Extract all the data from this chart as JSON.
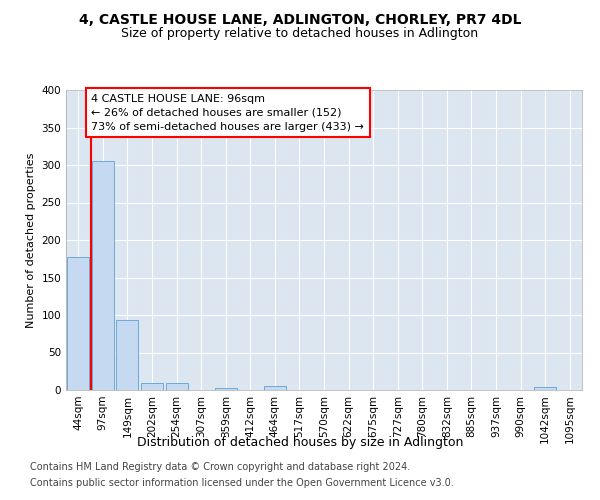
{
  "title1": "4, CASTLE HOUSE LANE, ADLINGTON, CHORLEY, PR7 4DL",
  "title2": "Size of property relative to detached houses in Adlington",
  "xlabel": "Distribution of detached houses by size in Adlington",
  "ylabel": "Number of detached properties",
  "bar_labels": [
    "44sqm",
    "97sqm",
    "149sqm",
    "202sqm",
    "254sqm",
    "307sqm",
    "359sqm",
    "412sqm",
    "464sqm",
    "517sqm",
    "570sqm",
    "622sqm",
    "675sqm",
    "727sqm",
    "780sqm",
    "832sqm",
    "885sqm",
    "937sqm",
    "990sqm",
    "1042sqm",
    "1095sqm"
  ],
  "bar_values": [
    178,
    305,
    93,
    9,
    10,
    0,
    3,
    0,
    5,
    0,
    0,
    0,
    0,
    0,
    0,
    0,
    0,
    0,
    0,
    4,
    0
  ],
  "bar_color": "#c5d9f0",
  "bar_edge_color": "#6fa8d5",
  "vline_x_bar": 1,
  "annotation_text_line1": "4 CASTLE HOUSE LANE: 96sqm",
  "annotation_text_line2": "← 26% of detached houses are smaller (152)",
  "annotation_text_line3": "73% of semi-detached houses are larger (433) →",
  "annotation_box_color": "white",
  "annotation_box_edge": "red",
  "vline_color": "red",
  "ylim": [
    0,
    400
  ],
  "yticks": [
    0,
    50,
    100,
    150,
    200,
    250,
    300,
    350,
    400
  ],
  "plot_bg_color": "#dce6f1",
  "footer1": "Contains HM Land Registry data © Crown copyright and database right 2024.",
  "footer2": "Contains public sector information licensed under the Open Government Licence v3.0.",
  "title1_fontsize": 10,
  "title2_fontsize": 9,
  "xlabel_fontsize": 9,
  "ylabel_fontsize": 8,
  "tick_fontsize": 7.5,
  "annotation_fontsize": 8,
  "footer_fontsize": 7
}
